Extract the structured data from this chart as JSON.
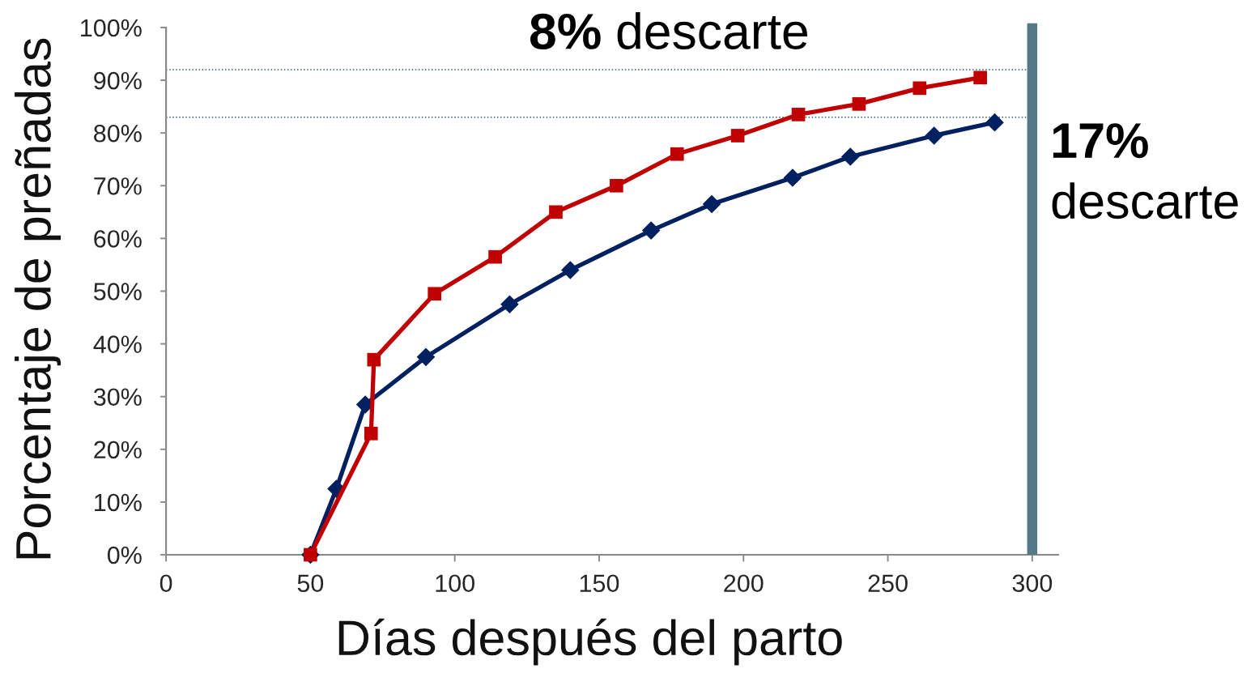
{
  "chart_data": {
    "type": "line",
    "xlabel": "Días después del parto",
    "ylabel": "Porcentaje de preñadas",
    "xlim": [
      0,
      309
    ],
    "xticks": [
      0,
      50,
      100,
      150,
      200,
      250,
      300
    ],
    "ylim": [
      0,
      100
    ],
    "yticks": [
      {
        "value": 0,
        "label": "0%"
      },
      {
        "value": 10,
        "label": "10%"
      },
      {
        "value": 20,
        "label": "20%"
      },
      {
        "value": 30,
        "label": "30%"
      },
      {
        "value": 40,
        "label": "40%"
      },
      {
        "value": 50,
        "label": "50%"
      },
      {
        "value": 60,
        "label": "60%"
      },
      {
        "value": 70,
        "label": "70%"
      },
      {
        "value": 80,
        "label": "80%"
      },
      {
        "value": 90,
        "label": "90%"
      },
      {
        "value": 100,
        "label": "100%"
      }
    ],
    "line_style": "solid",
    "series": [
      {
        "color": "#002060",
        "marker": "diamond",
        "x": [
          50,
          59,
          69,
          90,
          119,
          140,
          168,
          189,
          217,
          237,
          266,
          287
        ],
        "values": [
          0,
          12.5,
          28.5,
          37.5,
          47.5,
          54,
          61.5,
          66.5,
          71.5,
          75.5,
          79.5,
          82
        ]
      },
      {
        "color": "#c00000",
        "marker": "square",
        "x": [
          50,
          71,
          72,
          93,
          114,
          135,
          156,
          177,
          198,
          219,
          240,
          261,
          282
        ],
        "values": [
          0,
          23,
          37,
          49.5,
          56.5,
          65,
          70,
          76,
          79.5,
          83.5,
          85.5,
          88.5,
          90.5
        ]
      }
    ],
    "ref_lines": [
      {
        "axis": "y",
        "value": 92,
        "label": "8% descarte",
        "color": "#2e6378",
        "line_style": "dotted"
      },
      {
        "axis": "y",
        "value": 83,
        "label": "17% descarte",
        "color": "#2e6378",
        "line_style": "dotted"
      },
      {
        "axis": "x",
        "value": 300,
        "color": "#557a87",
        "line_style": "solid"
      }
    ]
  }
}
